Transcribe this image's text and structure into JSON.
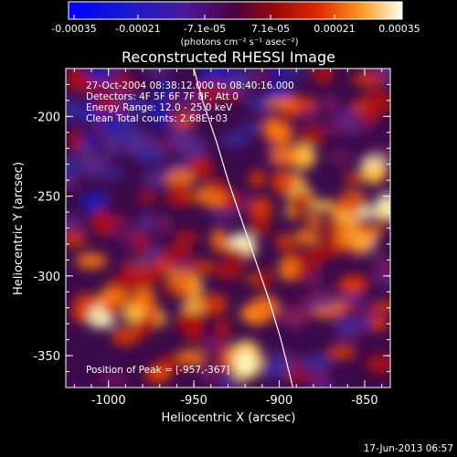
{
  "colorbar": {
    "ticks": [
      "-0.00035",
      "-0.00021",
      "-7.1e-05",
      "7.1e-05",
      "0.00021",
      "0.00035"
    ],
    "units_label": "(photons cm⁻² s⁻¹ asec⁻²)"
  },
  "chart_data": {
    "type": "heatmap",
    "title": "Reconstructed RHESSI Image",
    "xlabel": "Heliocentric X (arcsec)",
    "ylabel": "Heliocentric Y (arcsec)",
    "xlim": [
      -1025,
      -835
    ],
    "ylim": [
      -370,
      -170
    ],
    "x_ticks": [
      -1000,
      -950,
      -900,
      -850
    ],
    "y_ticks": [
      -200,
      -250,
      -300,
      -350
    ],
    "x_tick_labels": [
      "-1000",
      "-950",
      "-900",
      "-850"
    ],
    "y_tick_labels": [
      "-200",
      "-250",
      "-300",
      "-350"
    ],
    "colorscale_range": [
      -0.00035,
      0.00035
    ],
    "peak_position": [
      -957,
      -367
    ],
    "annotations": [
      "27-Oct-2004 08:38:12.000 to 08:40:16.000",
      "Detectors: 4F 5F 6F 7F 8F, Att 0",
      "Energy Range: 12.0 - 25.0 keV",
      "Clean     Total counts: 2.68E+03"
    ],
    "peak_label": "Position of Peak = [-957,-367]",
    "timestamp": "17-Jun-2013 06:57"
  }
}
